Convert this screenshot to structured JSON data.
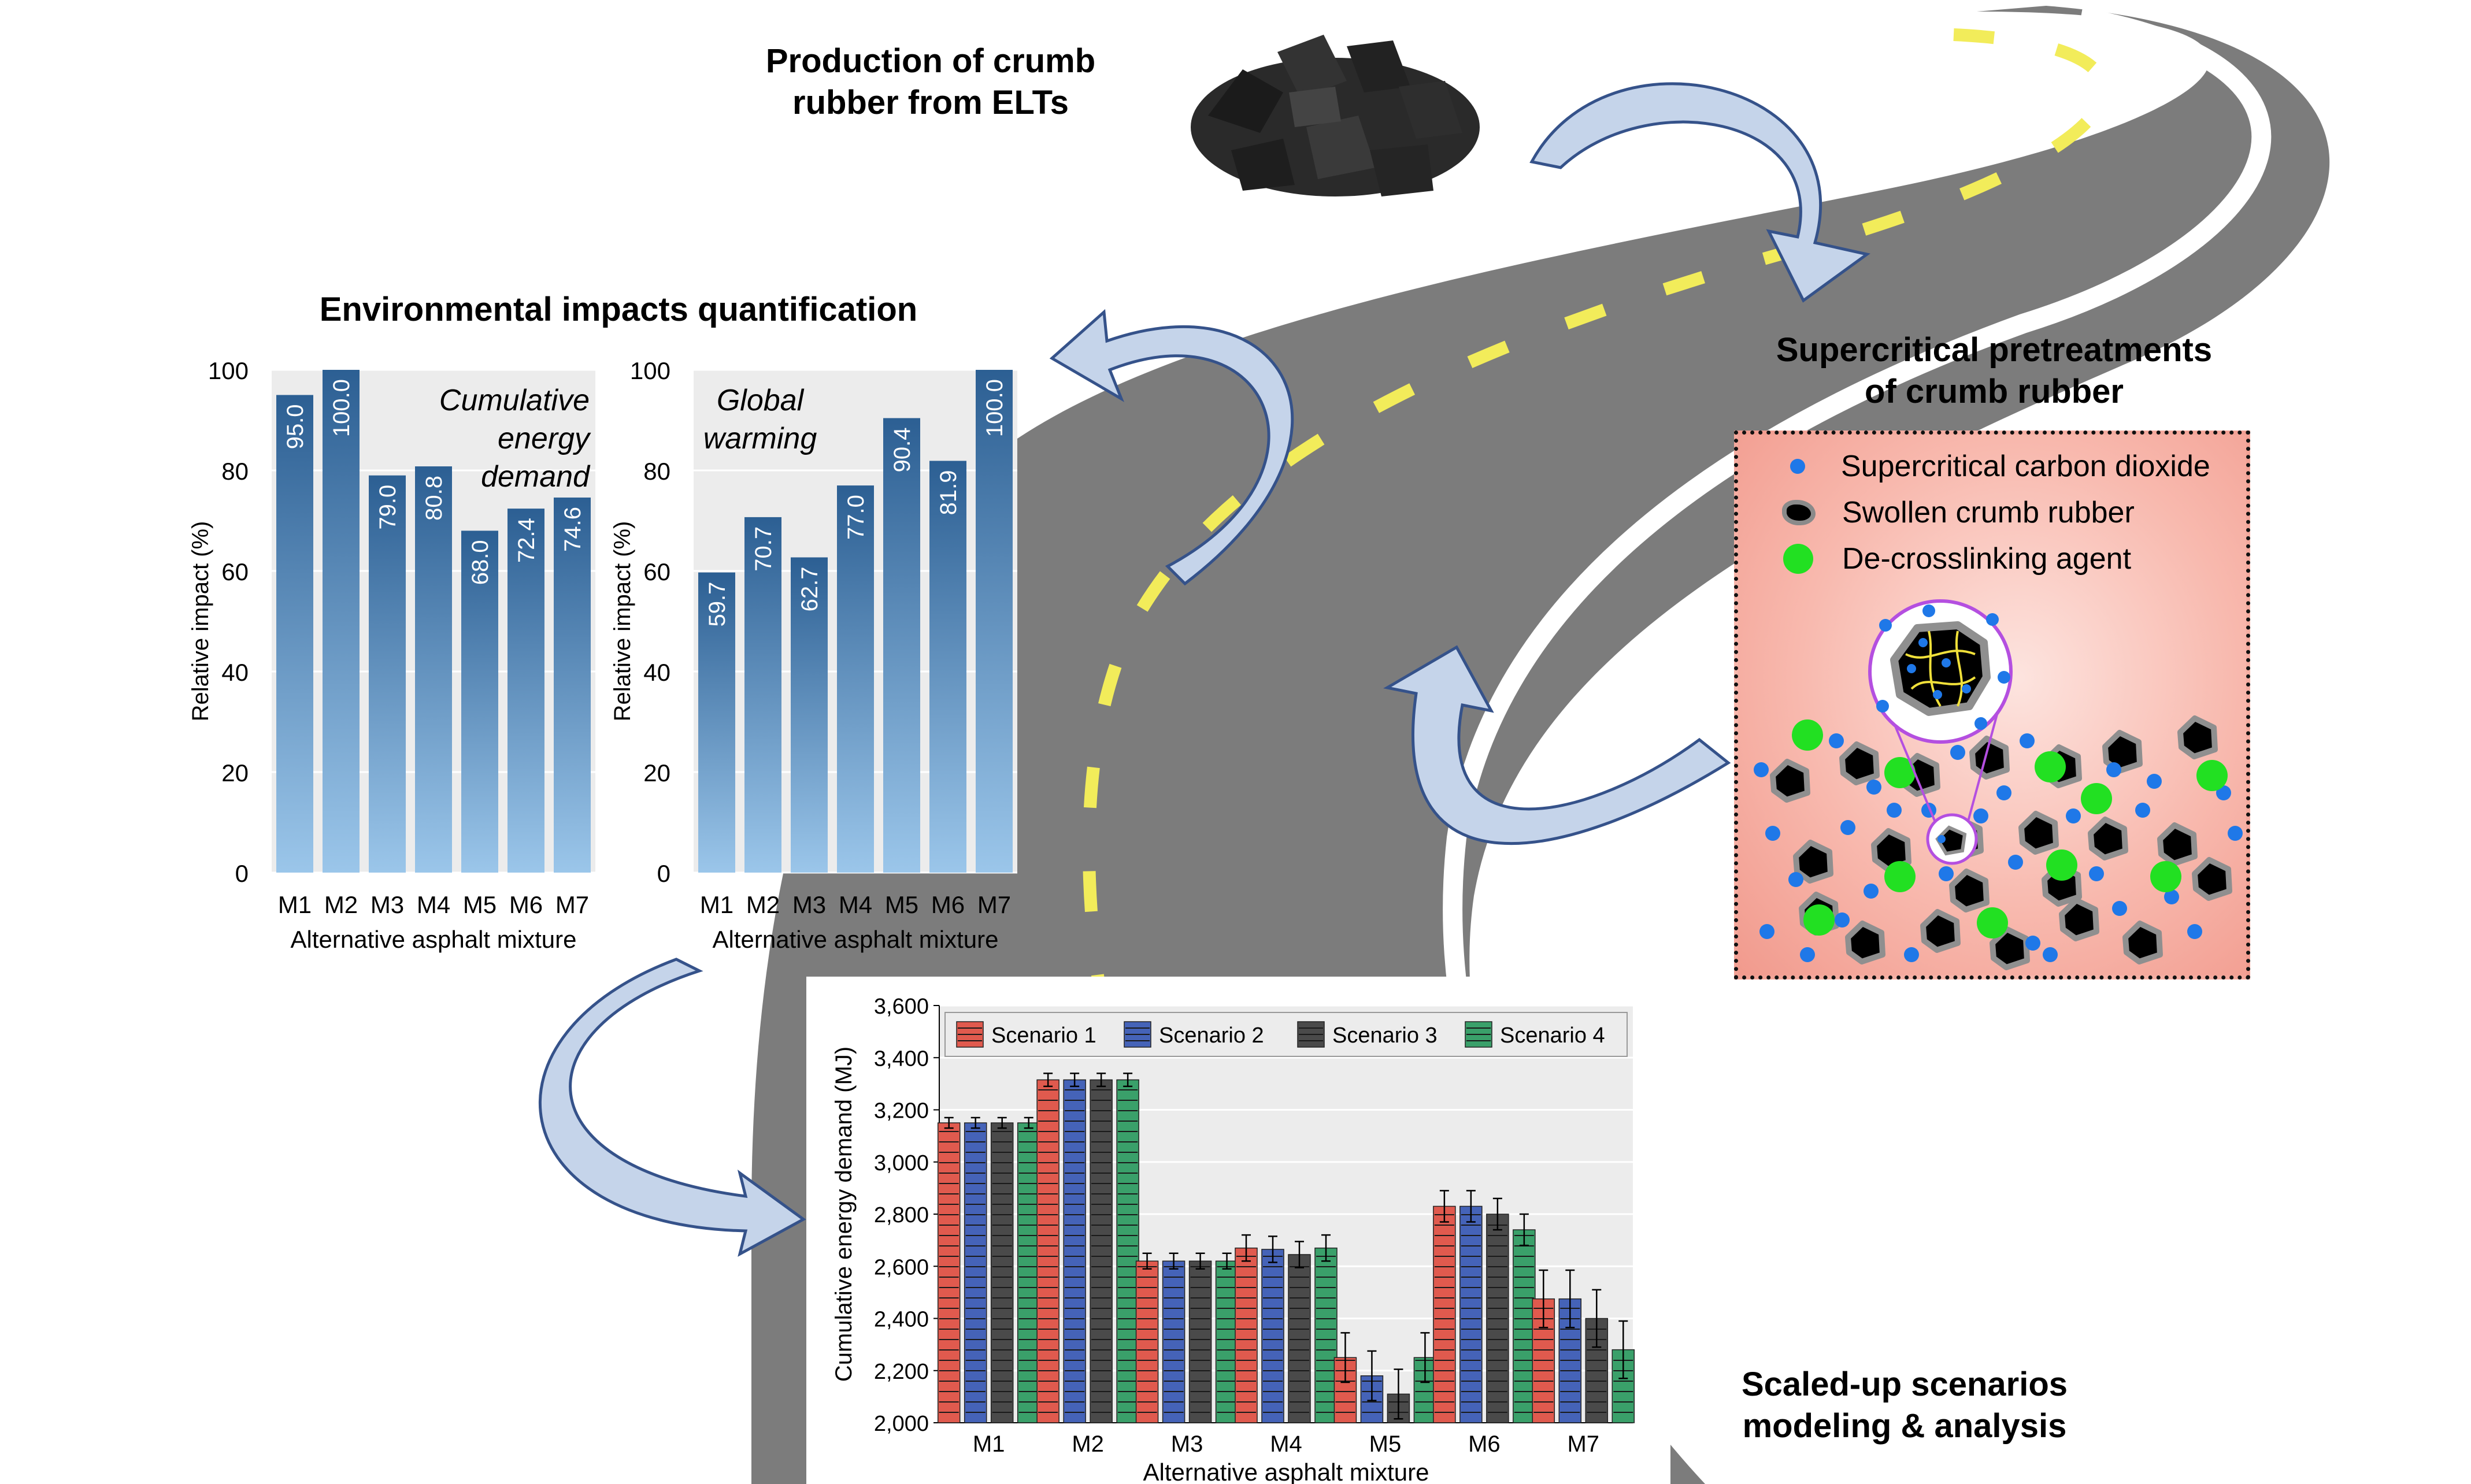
{
  "titles": {
    "production": "Production of crumb\nrubber from ELTs",
    "environmental": "Environmental impacts quantification",
    "supercritical": "Supercritical pretreatments\nof crumb rubber",
    "scaled": "Scaled-up scenarios\nmodeling & analysis"
  },
  "pretreatment_legend": {
    "co2": "Supercritical carbon dioxide",
    "rubber": "Swollen crumb rubber",
    "agent": "De-crosslinking agent"
  },
  "colors": {
    "arrow_fill": "#c5d4ea",
    "arrow_stroke": "#35528a",
    "road": "#7a7a7a",
    "road_line": "#f2ec5a",
    "co2_dot": "#1f78e8",
    "agent_dot": "#22e022",
    "magnifier": "#b44fe0"
  },
  "chart_data": [
    {
      "type": "bar",
      "annotation": "Cumulative\nenergy\ndemand",
      "categories": [
        "M1",
        "M2",
        "M3",
        "M4",
        "M5",
        "M6",
        "M7"
      ],
      "values": [
        95.0,
        100.0,
        79.0,
        80.8,
        68.0,
        72.4,
        74.6
      ],
      "value_labels": [
        "95.0",
        "100.0",
        "79.0",
        "80.8",
        "68.0",
        "72.4",
        "74.6"
      ],
      "xlabel": "Alternative asphalt mixture",
      "ylabel": "Relative impact (%)",
      "ylim": [
        0,
        100
      ],
      "yticks": [
        "0",
        "20",
        "40",
        "60",
        "80",
        "100"
      ],
      "bar_color_top": "#2c5f93",
      "bar_color_bottom": "#9bc6ea"
    },
    {
      "type": "bar",
      "annotation": "Global\nwarming",
      "categories": [
        "M1",
        "M2",
        "M3",
        "M4",
        "M5",
        "M6",
        "M7"
      ],
      "values": [
        59.7,
        70.7,
        62.7,
        77.0,
        90.4,
        81.9,
        100.0
      ],
      "value_labels": [
        "59.7",
        "70.7",
        "62.7",
        "77.0",
        "90.4",
        "81.9",
        "100.0"
      ],
      "xlabel": "Alternative asphalt mixture",
      "ylabel": "Relative impact (%)",
      "ylim": [
        0,
        100
      ],
      "yticks": [
        "0",
        "20",
        "40",
        "60",
        "80",
        "100"
      ],
      "bar_color_top": "#2c5f93",
      "bar_color_bottom": "#9bc6ea"
    },
    {
      "type": "bar",
      "categories": [
        "M1",
        "M2",
        "M3",
        "M4",
        "M5",
        "M6",
        "M7"
      ],
      "series": [
        {
          "name": "Scenario 1",
          "color": "#e05a4e",
          "values": [
            3150,
            3315,
            2620,
            2670,
            2250,
            2830,
            2475
          ],
          "errors": [
            20,
            25,
            30,
            50,
            95,
            60,
            110
          ]
        },
        {
          "name": "Scenario 2",
          "color": "#4563b8",
          "values": [
            3150,
            3315,
            2620,
            2665,
            2180,
            2830,
            2475
          ],
          "errors": [
            20,
            25,
            30,
            50,
            95,
            60,
            110
          ]
        },
        {
          "name": "Scenario 3",
          "color": "#4a4a4a",
          "values": [
            3150,
            3315,
            2620,
            2645,
            2110,
            2800,
            2400
          ],
          "errors": [
            20,
            25,
            30,
            50,
            95,
            60,
            110
          ]
        },
        {
          "name": "Scenario 4",
          "color": "#3aa06a",
          "values": [
            3150,
            3315,
            2620,
            2670,
            2250,
            2740,
            2280
          ],
          "errors": [
            20,
            25,
            30,
            50,
            95,
            60,
            110
          ]
        }
      ],
      "xlabel": "Alternative asphalt mixture",
      "ylabel": "Cumulative energy demand (MJ)",
      "ylim": [
        2000,
        3600
      ],
      "yticks": [
        "2,000",
        "2,200",
        "2,400",
        "2,600",
        "2,800",
        "3,000",
        "3,200",
        "3,400",
        "3,600"
      ],
      "legend_position": "top"
    }
  ]
}
